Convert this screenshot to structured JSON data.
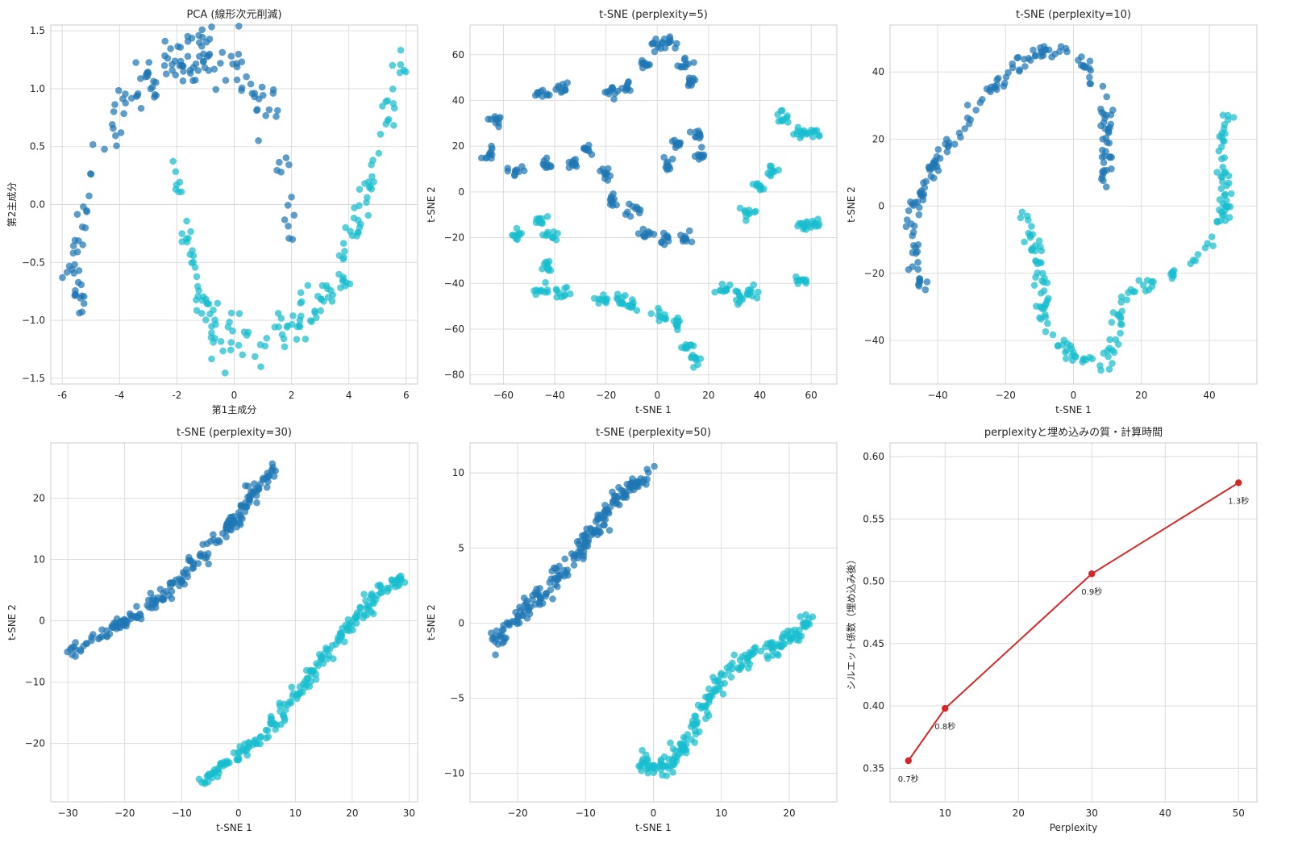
{
  "figure": {
    "bg": "#ffffff",
    "grid_color": "#d9d9d9",
    "spine_color": "#cccccc"
  },
  "colors": {
    "cluster_a": "#1f77b4",
    "cluster_b": "#17becf",
    "line": "#d62728"
  },
  "chart_data": [
    {
      "id": "pca",
      "type": "scatter",
      "title": "PCA (線形次元削減)",
      "xlabel": "第1主成分",
      "ylabel": "第2主成分",
      "xlim": [
        -6.4,
        6.4
      ],
      "ylim": [
        -1.55,
        1.55
      ],
      "xticks": [
        -6,
        -4,
        -2,
        0,
        2,
        4,
        6
      ],
      "yticks": [
        -1.5,
        -1.0,
        -0.5,
        0.0,
        0.5,
        1.0,
        1.5
      ],
      "ytick_labels": [
        "−1.5",
        "−1.0",
        "−0.5",
        "0.0",
        "0.5",
        "1.0",
        "1.5"
      ],
      "grid": true,
      "series": [
        {
          "color_key": "cluster_a",
          "path": [
            [
              -5.9,
              -0.55
            ],
            [
              -5.6,
              -0.75
            ],
            [
              -5.4,
              -0.9
            ],
            [
              -5.5,
              -0.4
            ],
            [
              -5.3,
              -0.1
            ],
            [
              -5.0,
              0.2
            ],
            [
              -4.6,
              0.5
            ],
            [
              -4.0,
              0.8
            ],
            [
              -3.2,
              1.0
            ],
            [
              -2.4,
              1.15
            ],
            [
              -1.6,
              1.25
            ],
            [
              -0.8,
              1.3
            ],
            [
              0,
              1.25
            ],
            [
              0.7,
              1.05
            ],
            [
              1.3,
              0.75
            ],
            [
              1.7,
              0.4
            ],
            [
              1.9,
              0.0
            ],
            [
              2.0,
              -0.2
            ]
          ],
          "n": 160,
          "jitter": 0.12,
          "seed": 11
        },
        {
          "color_key": "cluster_b",
          "path": [
            [
              -2.0,
              0.3
            ],
            [
              -1.9,
              0.0
            ],
            [
              -1.7,
              -0.3
            ],
            [
              -1.5,
              -0.6
            ],
            [
              -1.1,
              -0.9
            ],
            [
              -0.5,
              -1.15
            ],
            [
              0.2,
              -1.25
            ],
            [
              1.0,
              -1.2
            ],
            [
              1.8,
              -1.1
            ],
            [
              2.6,
              -0.95
            ],
            [
              3.3,
              -0.75
            ],
            [
              4.0,
              -0.45
            ],
            [
              4.5,
              -0.1
            ],
            [
              4.9,
              0.3
            ],
            [
              5.3,
              0.7
            ],
            [
              5.6,
              1.0
            ],
            [
              5.9,
              1.25
            ]
          ],
          "n": 160,
          "jitter": 0.12,
          "seed": 23
        }
      ]
    },
    {
      "id": "tsne5",
      "type": "scatter",
      "title": "t-SNE (perplexity=5)",
      "xlabel": "t-SNE 1",
      "ylabel": "t-SNE 2",
      "xlim": [
        -73,
        70
      ],
      "ylim": [
        -84,
        73
      ],
      "xticks": [
        -60,
        -40,
        -20,
        0,
        20,
        40,
        60
      ],
      "yticks": [
        -80,
        -60,
        -40,
        -20,
        0,
        20,
        40,
        60
      ],
      "xtick_labels": [
        "−60",
        "−40",
        "−20",
        "0",
        "20",
        "40",
        "60"
      ],
      "ytick_labels": [
        "−80",
        "−60",
        "−40",
        "−20",
        "0",
        "20",
        "40",
        "60"
      ],
      "grid": true,
      "clusters_a": [
        [
          -63,
          31
        ],
        [
          -65,
          16
        ],
        [
          -55,
          9
        ],
        [
          -45,
          43
        ],
        [
          -38,
          46
        ],
        [
          -43,
          12
        ],
        [
          -33,
          12
        ],
        [
          -27,
          18
        ],
        [
          -20,
          8
        ],
        [
          -17,
          -4
        ],
        [
          -18,
          44
        ],
        [
          -12,
          46
        ],
        [
          -10,
          -8
        ],
        [
          -5,
          55
        ],
        [
          0,
          65
        ],
        [
          5,
          65
        ],
        [
          8,
          21
        ],
        [
          4,
          12
        ],
        [
          11,
          56
        ],
        [
          13,
          48
        ],
        [
          15,
          26
        ],
        [
          17,
          16
        ],
        [
          -4,
          -18
        ],
        [
          3,
          -20
        ],
        [
          11,
          -20
        ]
      ],
      "clusters_b": [
        [
          -55,
          -19
        ],
        [
          -45,
          -12
        ],
        [
          -41,
          -19
        ],
        [
          -42,
          -32
        ],
        [
          -37,
          -43
        ],
        [
          -45,
          -43
        ],
        [
          -22,
          -47
        ],
        [
          -15,
          -47
        ],
        [
          -10,
          -50
        ],
        [
          1,
          -54
        ],
        [
          7,
          -58
        ],
        [
          11,
          -67
        ],
        [
          15,
          -73
        ],
        [
          26,
          -43
        ],
        [
          32,
          -46
        ],
        [
          37,
          -44
        ],
        [
          35,
          -9
        ],
        [
          40,
          2
        ],
        [
          45,
          9
        ],
        [
          49,
          33
        ],
        [
          55,
          26
        ],
        [
          61,
          25
        ],
        [
          57,
          -15
        ],
        [
          61,
          -14
        ],
        [
          56,
          -39
        ]
      ],
      "cluster_n": 10,
      "cluster_jitter": 1.6,
      "seed": 37
    },
    {
      "id": "tsne10",
      "type": "scatter",
      "title": "t-SNE (perplexity=10)",
      "xlabel": "t-SNE 1",
      "ylabel": "t-SNE 2",
      "xlim": [
        -54,
        54
      ],
      "ylim": [
        -53,
        54
      ],
      "xticks": [
        -40,
        -20,
        0,
        20,
        40
      ],
      "yticks": [
        -40,
        -20,
        0,
        20,
        40
      ],
      "xtick_labels": [
        "−40",
        "−20",
        "0",
        "20",
        "40"
      ],
      "ytick_labels": [
        "−40",
        "−20",
        "0",
        "20",
        "40"
      ],
      "grid": true,
      "series": [
        {
          "color_key": "cluster_a",
          "path": [
            [
              -44,
              -25
            ],
            [
              -46,
              -18
            ],
            [
              -48,
              -5
            ],
            [
              -45,
              2
            ],
            [
              -43,
              7
            ],
            [
              -40,
              14
            ],
            [
              -35,
              20
            ],
            [
              -30,
              27
            ],
            [
              -25,
              34
            ],
            [
              -20,
              38
            ],
            [
              -15,
              43
            ],
            [
              -10,
              46
            ],
            [
              -5,
              47
            ],
            [
              0,
              45
            ],
            [
              4,
              42
            ],
            [
              7,
              36
            ],
            [
              9,
              30
            ],
            [
              10,
              24
            ],
            [
              10,
              18
            ],
            [
              9,
              12
            ],
            [
              8,
              6
            ],
            [
              10,
              4
            ]
          ],
          "n": 170,
          "jitter": 1.0,
          "seed": 41
        },
        {
          "color_key": "cluster_b",
          "path": [
            [
              -15,
              -2
            ],
            [
              -12,
              -8
            ],
            [
              -11,
              -14
            ],
            [
              -10,
              -22
            ],
            [
              -9,
              -30
            ],
            [
              -8,
              -36
            ],
            [
              -5,
              -40
            ],
            [
              0,
              -44
            ],
            [
              5,
              -46
            ],
            [
              10,
              -48
            ],
            [
              15,
              -26
            ],
            [
              20,
              -24
            ],
            [
              25,
              -22
            ],
            [
              30,
              -20
            ],
            [
              35,
              -17
            ],
            [
              40,
              -12
            ],
            [
              44,
              -5
            ],
            [
              45,
              5
            ],
            [
              43,
              15
            ],
            [
              45,
              23
            ],
            [
              46,
              27
            ]
          ],
          "n": 170,
          "jitter": 1.0,
          "seed": 53
        }
      ]
    },
    {
      "id": "tsne30",
      "type": "scatter",
      "title": "t-SNE (perplexity=30)",
      "xlabel": "t-SNE 1",
      "ylabel": "t-SNE 2",
      "xlim": [
        -33,
        31.5
      ],
      "ylim": [
        -29.5,
        29
      ],
      "xticks": [
        -30,
        -20,
        -10,
        0,
        10,
        20,
        30
      ],
      "yticks": [
        -20,
        -10,
        0,
        10,
        20
      ],
      "xtick_labels": [
        "−30",
        "−20",
        "−10",
        "0",
        "10",
        "20",
        "30"
      ],
      "ytick_labels": [
        "−20",
        "−10",
        "0",
        "10",
        "20"
      ],
      "grid": true,
      "series": [
        {
          "color_key": "cluster_a",
          "path": [
            [
              -30,
              -5.5
            ],
            [
              -25,
              -3
            ],
            [
              -20,
              0
            ],
            [
              -15,
              3
            ],
            [
              -10,
              7
            ],
            [
              -5,
              12
            ],
            [
              0,
              17
            ],
            [
              2,
              20
            ],
            [
              5,
              23
            ],
            [
              6,
              25
            ]
          ],
          "n": 200,
          "jitter": 0.6,
          "seed": 61
        },
        {
          "color_key": "cluster_b",
          "path": [
            [
              -6,
              -26
            ],
            [
              -3,
              -24
            ],
            [
              0,
              -22
            ],
            [
              5,
              -18
            ],
            [
              10,
              -12
            ],
            [
              15,
              -6
            ],
            [
              20,
              0
            ],
            [
              25,
              5
            ],
            [
              28,
              7
            ],
            [
              29,
              6
            ]
          ],
          "n": 200,
          "jitter": 0.6,
          "seed": 67
        }
      ]
    },
    {
      "id": "tsne50",
      "type": "scatter",
      "title": "t-SNE (perplexity=50)",
      "xlabel": "t-SNE 1",
      "ylabel": "t-SNE 2",
      "xlim": [
        -27,
        27
      ],
      "ylim": [
        -11.9,
        12
      ],
      "xticks": [
        -20,
        -10,
        0,
        10,
        20
      ],
      "yticks": [
        -10,
        -5,
        0,
        5,
        10
      ],
      "xtick_labels": [
        "−20",
        "−10",
        "0",
        "10",
        "20"
      ],
      "ytick_labels": [
        "−10",
        "−5",
        "0",
        "5",
        "10"
      ],
      "grid": true,
      "series": [
        {
          "color_key": "cluster_a",
          "path": [
            [
              -24,
              -1.5
            ],
            [
              -20,
              0.5
            ],
            [
              -15,
              2.5
            ],
            [
              -10,
              5.5
            ],
            [
              -5,
              8.5
            ],
            [
              -2,
              9.5
            ],
            [
              0,
              10
            ]
          ],
          "n": 200,
          "jitter": 0.35,
          "seed": 71
        },
        {
          "color_key": "cluster_b",
          "path": [
            [
              -2,
              -9.5
            ],
            [
              2,
              -9.5
            ],
            [
              5,
              -8
            ],
            [
              8,
              -5
            ],
            [
              11,
              -3
            ],
            [
              15,
              -2
            ],
            [
              20,
              -1
            ],
            [
              23,
              0
            ]
          ],
          "n": 200,
          "jitter": 0.35,
          "seed": 79
        }
      ]
    },
    {
      "id": "quality",
      "type": "line",
      "title": "perplexityと埋め込みの質・計算時間",
      "xlabel": "Perplexity",
      "ylabel": "シルエット係数（埋め込み後）",
      "xlim": [
        2.5,
        52.5
      ],
      "ylim": [
        0.323,
        0.611
      ],
      "xticks": [
        10,
        20,
        30,
        40,
        50
      ],
      "yticks": [
        0.35,
        0.4,
        0.45,
        0.5,
        0.55,
        0.6
      ],
      "ytick_labels": [
        "0.35",
        "0.40",
        "0.45",
        "0.50",
        "0.55",
        "0.60"
      ],
      "grid": true,
      "x": [
        5,
        10,
        30,
        50
      ],
      "y": [
        0.356,
        0.398,
        0.506,
        0.579
      ],
      "labels": [
        "0.7秒",
        "0.8秒",
        "0.9秒",
        "1.3秒"
      ]
    }
  ]
}
